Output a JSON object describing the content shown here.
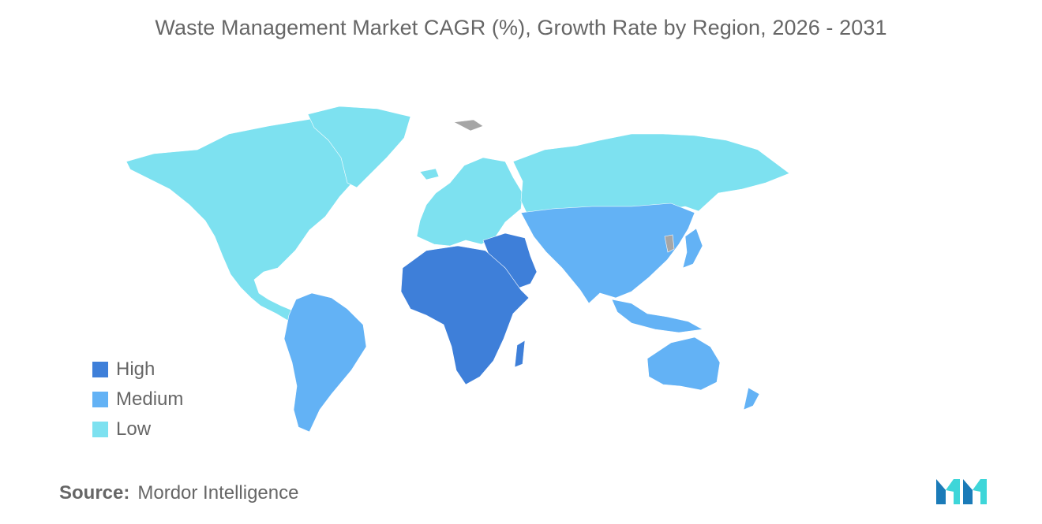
{
  "title": "Waste Management Market CAGR (%), Growth Rate by Region, 2026 - 2031",
  "legend": {
    "items": [
      {
        "label": "High",
        "color": "#3e7fd9"
      },
      {
        "label": "Medium",
        "color": "#63b2f5"
      },
      {
        "label": "Low",
        "color": "#7de1f0"
      }
    ]
  },
  "map": {
    "no_data_color": "#a6a6a6",
    "regions": [
      {
        "region": "North America",
        "category": "Low"
      },
      {
        "region": "Europe",
        "category": "Low"
      },
      {
        "region": "Russia",
        "category": "Low"
      },
      {
        "region": "South America",
        "category": "Medium"
      },
      {
        "region": "Asia-Pacific",
        "category": "Medium"
      },
      {
        "region": "Middle East and Africa",
        "category": "High"
      }
    ]
  },
  "source": {
    "label": "Source:",
    "text": "Mordor Intelligence"
  },
  "logo": {
    "colors": [
      "#1b7bb8",
      "#3ed6d9"
    ]
  }
}
